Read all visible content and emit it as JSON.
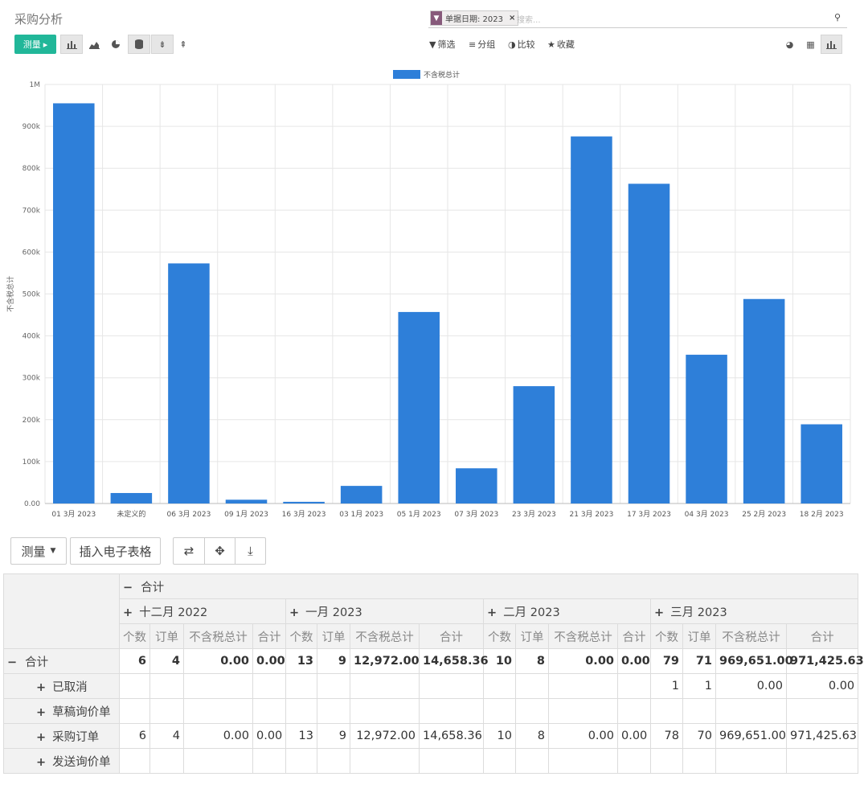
{
  "header": {
    "title": "采购分析",
    "search": {
      "facet_label": "单据日期: 2023",
      "placeholder": "搜索..."
    },
    "measure_button": "测量",
    "filter_label": "筛选",
    "group_label": "分组",
    "compare_label": "比较",
    "favorites_label": "收藏"
  },
  "chart_data": {
    "type": "bar",
    "series": [
      {
        "name": "不含税总计",
        "values": [
          955000,
          25000,
          573000,
          9000,
          4000,
          42000,
          457000,
          84000,
          280000,
          876000,
          763000,
          355000,
          488000,
          189000
        ]
      }
    ],
    "categories": [
      "01 3月 2023",
      "未定义的",
      "06 3月 2023",
      "09 1月 2023",
      "16 3月 2023",
      "03 1月 2023",
      "05 1月 2023",
      "07 3月 2023",
      "23 3月 2023",
      "21 3月 2023",
      "17 3月 2023",
      "04 3月 2023",
      "25 2月 2023",
      "18 2月 2023"
    ],
    "ylabel": "不含税总计",
    "ylim": [
      0,
      1000000
    ],
    "yticks": [
      "0.00",
      "100k",
      "200k",
      "300k",
      "400k",
      "500k",
      "600k",
      "700k",
      "800k",
      "900k",
      "1M"
    ],
    "color": "#2e7fd9",
    "grid": true,
    "legend_position": "top-center"
  },
  "pivot": {
    "measure_button": "测量",
    "insert_button": "插入电子表格",
    "total_label": "合计",
    "measures": [
      "个数",
      "订单",
      "不含税总计",
      "合计"
    ],
    "columns": [
      "十二月 2022",
      "一月 2023",
      "二月 2023",
      "三月 2023"
    ],
    "rows": [
      {
        "label": "合计",
        "cells": [
          "6",
          "4",
          "0.00",
          "0.00",
          "13",
          "9",
          "12,972.00",
          "14,658.36",
          "10",
          "8",
          "0.00",
          "0.00",
          "79",
          "71",
          "969,651.00",
          "971,425.63"
        ]
      },
      {
        "label": "已取消",
        "cells": [
          "",
          "",
          "",
          "",
          "",
          "",
          "",
          "",
          "",
          "",
          "",
          "",
          "1",
          "1",
          "0.00",
          "0.00"
        ]
      },
      {
        "label": "草稿询价单",
        "cells": [
          "",
          "",
          "",
          "",
          "",
          "",
          "",
          "",
          "",
          "",
          "",
          "",
          "",
          "",
          "",
          ""
        ]
      },
      {
        "label": "采购订单",
        "cells": [
          "6",
          "4",
          "0.00",
          "0.00",
          "13",
          "9",
          "12,972.00",
          "14,658.36",
          "10",
          "8",
          "0.00",
          "0.00",
          "78",
          "70",
          "969,651.00",
          "971,425.63"
        ]
      },
      {
        "label": "发送询价单",
        "cells": [
          "",
          "",
          "",
          "",
          "",
          "",
          "",
          "",
          "",
          "",
          "",
          "",
          "",
          "",
          "",
          ""
        ]
      }
    ]
  }
}
